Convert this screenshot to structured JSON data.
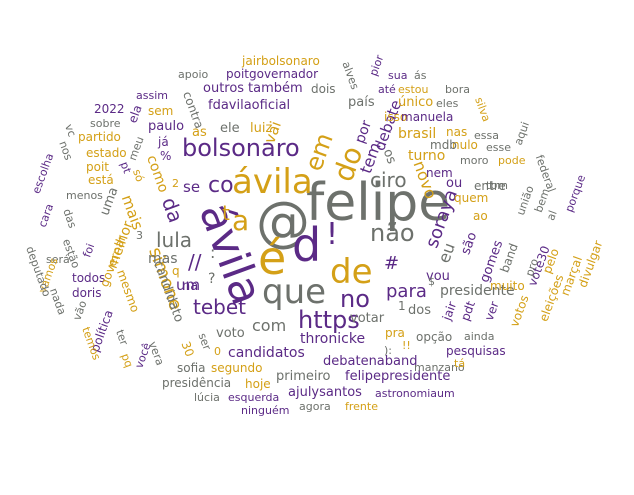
{
  "palette": {
    "purple": "#5b2a86",
    "gold": "#d4a017",
    "gray": "#6d716c",
    "light_gold": "#e0b84a"
  },
  "words": [
    {
      "text": "felipe",
      "color": "gray"
    },
    {
      "text": "@",
      "color": "gray"
    },
    {
      "text": "é",
      "color": "gold"
    },
    {
      "text": "d",
      "color": "purple"
    },
    {
      "text": "!",
      "color": "purple"
    },
    {
      "text": "ávila",
      "color": "purple"
    },
    {
      "text": "ávila",
      "color": "gold"
    },
    {
      "text": "de",
      "color": "gold"
    },
    {
      "text": "que",
      "color": "gray"
    },
    {
      "text": "a",
      "color": "gold"
    },
    {
      "text": "bolsonaro",
      "color": "purple"
    },
    {
      "text": "não",
      "color": "gray"
    },
    {
      "text": "do",
      "color": "gold"
    },
    {
      "text": "no",
      "color": "purple"
    },
    {
      "text": "https",
      "color": "purple"
    },
    {
      "text": "em",
      "color": "gold"
    },
    {
      "text": "co",
      "color": "purple"
    },
    {
      "text": "lula",
      "color": "gray"
    },
    {
      "text": "tebet",
      "color": "purple"
    },
    {
      "text": "ciro",
      "color": "gray"
    },
    {
      "text": "#",
      "color": "purple"
    },
    {
      "text": "da",
      "color": "purple"
    },
    {
      "text": "para",
      "color": "purple"
    },
    {
      "text": "t",
      "color": "gold"
    },
    {
      "text": "simone",
      "color": "gold"
    },
    {
      "text": "soraya",
      "color": "purple"
    },
    {
      "text": "novo",
      "color": "gold"
    },
    {
      "text": "com",
      "color": "gray"
    },
    {
      "text": "um",
      "color": "purple"
    },
    {
      "text": "se",
      "color": "purple"
    },
    {
      "text": "vai",
      "color": "gold"
    },
    {
      "text": "tem",
      "color": "purple"
    },
    {
      "text": "debate",
      "color": "purple"
    },
    {
      "text": "candidatos",
      "color": "purple"
    },
    {
      "text": "thronicke",
      "color": "purple"
    },
    {
      "text": "presidente",
      "color": "gray"
    },
    {
      "text": "mais",
      "color": "gold"
    },
    {
      "text": "mas",
      "color": "gray"
    },
    {
      "text": "como",
      "color": "gold"
    },
    {
      "text": "uma",
      "color": "gray"
    },
    {
      "text": "melhor",
      "color": "gold"
    },
    {
      "text": "candidato",
      "color": "gray"
    },
    {
      "text": "voto",
      "color": "gray"
    },
    {
      "text": "votar",
      "color": "gray"
    },
    {
      "text": "debatenaband",
      "color": "purple"
    },
    {
      "text": "felipepresidente",
      "color": "purple"
    },
    {
      "text": "primeiro",
      "color": "gray"
    },
    {
      "text": "ajulysantos",
      "color": "purple"
    },
    {
      "text": "hoje",
      "color": "gold"
    },
    {
      "text": "segundo",
      "color": "gold"
    },
    {
      "text": "sofia",
      "color": "gray"
    },
    {
      "text": "presidência",
      "color": "gray"
    },
    {
      "text": "lúcia",
      "color": "gray"
    },
    {
      "text": "esquerda",
      "color": "purple"
    },
    {
      "text": "ninguém",
      "color": "purple"
    },
    {
      "text": "agora",
      "color": "gray"
    },
    {
      "text": "frente",
      "color": "gold"
    },
    {
      "text": "astronomiaum",
      "color": "purple"
    },
    {
      "text": "manzano",
      "color": "gray"
    },
    {
      "text": "pesquisas",
      "color": "purple"
    },
    {
      "text": "opção",
      "color": "gray"
    },
    {
      "text": "ainda",
      "color": "gray"
    },
    {
      "text": "pra",
      "color": "gold"
    },
    {
      "text": "dos",
      "color": "gray"
    },
    {
      "text": "jair",
      "color": "purple"
    },
    {
      "text": "pdt",
      "color": "purple"
    },
    {
      "text": "ver",
      "color": "purple"
    },
    {
      "text": "votos",
      "color": "gold"
    },
    {
      "text": "eleições",
      "color": "gold"
    },
    {
      "text": "marçal",
      "color": "gold"
    },
    {
      "text": "divulgar",
      "color": "gold"
    },
    {
      "text": "pelo",
      "color": "gold"
    },
    {
      "text": "muito",
      "color": "gold"
    },
    {
      "text": "vote30",
      "color": "purple"
    },
    {
      "text": "band",
      "color": "gray"
    },
    {
      "text": "gomes",
      "color": "purple"
    },
    {
      "text": "são",
      "color": "purple"
    },
    {
      "text": "eu",
      "color": "gray"
    },
    {
      "text": "vou",
      "color": "purple"
    },
    {
      "text": "ao",
      "color": "gold"
    },
    {
      "text": "quem",
      "color": "gold"
    },
    {
      "text": "ou",
      "color": "purple"
    },
    {
      "text": "nem",
      "color": "purple"
    },
    {
      "text": "entre",
      "color": "gray"
    },
    {
      "text": "turno",
      "color": "gold"
    },
    {
      "text": "brasil",
      "color": "gold"
    },
    {
      "text": "isso",
      "color": "gold"
    },
    {
      "text": "nulo",
      "color": "gold"
    },
    {
      "text": "mdb",
      "color": "gray"
    },
    {
      "text": "nas",
      "color": "gold"
    },
    {
      "text": "moro",
      "color": "gray"
    },
    {
      "text": "pode",
      "color": "gold"
    },
    {
      "text": "essa",
      "color": "gray"
    },
    {
      "text": "único",
      "color": "gold"
    },
    {
      "text": "eles",
      "color": "gray"
    },
    {
      "text": "país",
      "color": "gray"
    },
    {
      "text": "por",
      "color": "purple"
    },
    {
      "text": "os",
      "color": "gray"
    },
    {
      "text": "dois",
      "color": "gray"
    },
    {
      "text": "também",
      "color": "purple"
    },
    {
      "text": "fdavilaoficial",
      "color": "purple"
    },
    {
      "text": "outros",
      "color": "purple"
    },
    {
      "text": "poitgovernador",
      "color": "purple"
    },
    {
      "text": "jairbolsonaro",
      "color": "gold"
    },
    {
      "text": "apoio",
      "color": "gray"
    },
    {
      "text": "assim",
      "color": "purple"
    },
    {
      "text": "2022",
      "color": "purple"
    },
    {
      "text": "sem",
      "color": "gold"
    },
    {
      "text": "paulo",
      "color": "purple"
    },
    {
      "text": "as",
      "color": "gold"
    },
    {
      "text": "ele",
      "color": "gray"
    },
    {
      "text": "luiz",
      "color": "gold"
    },
    {
      "text": "ela",
      "color": "purple"
    },
    {
      "text": "contra",
      "color": "gray"
    },
    {
      "text": "partido",
      "color": "gold"
    },
    {
      "text": "estado",
      "color": "gold"
    },
    {
      "text": "poit",
      "color": "gold"
    },
    {
      "text": "está",
      "color": "gold"
    },
    {
      "text": "sobre",
      "color": "gray"
    },
    {
      "text": "vc",
      "color": "gray"
    },
    {
      "text": "nos",
      "color": "gray"
    },
    {
      "text": "escolha",
      "color": "purple"
    },
    {
      "text": "menos",
      "color": "gray"
    },
    {
      "text": "meu",
      "color": "gray"
    },
    {
      "text": "já",
      "color": "purple"
    },
    {
      "text": "%",
      "color": "purple"
    },
    {
      "text": "pt",
      "color": "purple"
    },
    {
      "text": "só",
      "color": "gold"
    },
    {
      "text": "cara",
      "color": "purple"
    },
    {
      "text": "das",
      "color": "gray"
    },
    {
      "text": "foi",
      "color": "purple"
    },
    {
      "text": "estão",
      "color": "gray"
    },
    {
      "text": "será",
      "color": "gray"
    },
    {
      "text": "vamos",
      "color": "gold"
    },
    {
      "text": "deputado",
      "color": "gray"
    },
    {
      "text": "nada",
      "color": "gray"
    },
    {
      "text": "todos",
      "color": "purple"
    },
    {
      "text": "doris",
      "color": "purple"
    },
    {
      "text": "governar",
      "color": "gold"
    },
    {
      "text": "mesmo",
      "color": "gold"
    },
    {
      "text": "vão",
      "color": "gray"
    },
    {
      "text": "política",
      "color": "purple"
    },
    {
      "text": "temos",
      "color": "gold"
    },
    {
      "text": "ter",
      "color": "gray"
    },
    {
      "text": "você",
      "color": "purple"
    },
    {
      "text": "vera",
      "color": "gray"
    },
    {
      "text": "pq",
      "color": "gold"
    },
    {
      "text": "30",
      "color": "gold"
    },
    {
      "text": "ser",
      "color": "gray"
    },
    {
      "text": "na",
      "color": "purple"
    },
    {
      "text": "?",
      "color": "gray"
    },
    {
      "text": "//",
      "color": "purple"
    },
    {
      "text": ":",
      "color": "gray"
    },
    {
      "text": "q",
      "color": "gold"
    },
    {
      "text": "3",
      "color": "gray"
    },
    {
      "text": "2",
      "color": "gold"
    },
    {
      "text": "0",
      "color": "gold"
    },
    {
      "text": "1",
      "color": "gray"
    },
    {
      "text": "$",
      "color": "gray"
    },
    {
      "text": "):",
      "color": "gray"
    },
    {
      "text": "!!",
      "color": "gold"
    },
    {
      "text": "manuela",
      "color": "purple"
    },
    {
      "text": "estou",
      "color": "gold"
    },
    {
      "text": "até",
      "color": "purple"
    },
    {
      "text": "bora",
      "color": "gray"
    },
    {
      "text": "silva",
      "color": "gold"
    },
    {
      "text": "aqui",
      "color": "gray"
    },
    {
      "text": "tbm",
      "color": "gray"
    },
    {
      "text": "esse",
      "color": "gray"
    },
    {
      "text": "federal",
      "color": "gray"
    },
    {
      "text": "união",
      "color": "gray"
    },
    {
      "text": "bem",
      "color": "gray"
    },
    {
      "text": "porque",
      "color": "purple"
    },
    {
      "text": "al",
      "color": "gray"
    },
    {
      "text": "pro",
      "color": "gray"
    },
    {
      "text": "alves",
      "color": "gray"
    },
    {
      "text": "pior",
      "color": "purple"
    },
    {
      "text": "sua",
      "color": "purple"
    },
    {
      "text": "ás",
      "color": "gray"
    },
    {
      "text": "tá",
      "color": "gold"
    }
  ]
}
